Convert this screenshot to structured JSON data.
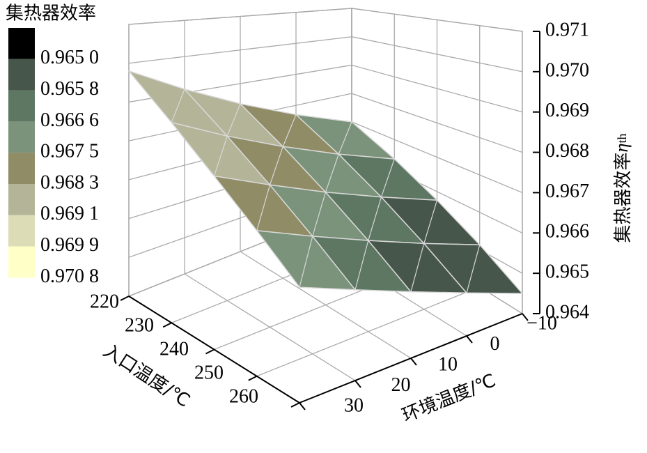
{
  "chart_data": {
    "type": "surface",
    "x_label": "入口温度/℃",
    "y_label": "环境温度/℃",
    "z_label": "集热器效率",
    "z_label_symbol": "η",
    "z_label_sub": "th",
    "legend_title": "集热器效率",
    "x": [
      220,
      230,
      240,
      250,
      260
    ],
    "y": [
      -10,
      0,
      10,
      20,
      30
    ],
    "z": [
      [
        0.967,
        0.9677,
        0.9684,
        0.9691,
        0.9698
      ],
      [
        0.96638,
        0.96704,
        0.9677,
        0.96836,
        0.96903
      ],
      [
        0.96575,
        0.96638,
        0.967,
        0.96763,
        0.96825
      ],
      [
        0.96513,
        0.96571,
        0.9663,
        0.96689,
        0.96748
      ],
      [
        0.9645,
        0.96505,
        0.9656,
        0.96615,
        0.9667
      ]
    ],
    "xlim": [
      220,
      260
    ],
    "ylim": [
      -10,
      30
    ],
    "zlim": [
      0.964,
      0.971
    ],
    "xticks": [
      220,
      230,
      240,
      250,
      260
    ],
    "yticks": [
      {
        "value": -10,
        "label": "−10"
      },
      0,
      10,
      20,
      30
    ],
    "zticks": [
      0.964,
      0.965,
      0.966,
      0.967,
      0.968,
      0.969,
      {
        "value": 0.97,
        "label": "0.970"
      },
      0.971
    ],
    "levels": [
      {
        "value": 0.965,
        "label": "0.965 0"
      },
      {
        "value": 0.9658,
        "label": "0.965 8"
      },
      {
        "value": 0.9666,
        "label": "0.966 6"
      },
      {
        "value": 0.9675,
        "label": "0.967 5"
      },
      {
        "value": 0.9683,
        "label": "0.968 3"
      },
      {
        "value": 0.9691,
        "label": "0.969 1"
      },
      {
        "value": 0.9699,
        "label": "0.969 9"
      },
      {
        "value": 0.9708,
        "label": "0.970 8"
      }
    ],
    "colors": [
      "#000000",
      "#47564a",
      "#5d7763",
      "#7b937a",
      "#908c66",
      "#b4b498",
      "#dcdcb6",
      "#ffffc8"
    ],
    "grid": true
  }
}
